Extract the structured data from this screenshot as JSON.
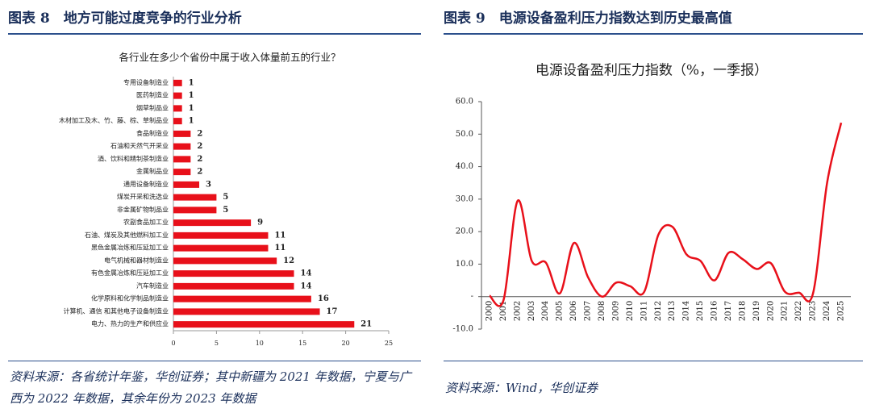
{
  "figures": [
    {
      "header": "图表 8　地方可能过度竞争的行业分析",
      "source": "资料来源：各省统计年鉴，华创证券；其中新疆为 2021 年数据，宁夏与广西为 2022 年数据，其余年份为 2023 年数据"
    },
    {
      "header": "图表 9　电源设备盈利压力指数达到历史最高值",
      "source": "资料来源：Wind，华创证券"
    }
  ],
  "chart_data": [
    {
      "type": "hbar",
      "title": "各行业在多少个省份中属于收入体量前五的行业？",
      "color": "#e8101a",
      "categories": [
        "专用设备制造业",
        "医药制造业",
        "烟草制品业",
        "木材加工及木、竹、藤、棕、草制品业",
        "食品制造业",
        "石油和天然气开采业",
        "酒、饮料和精制茶制造业",
        "金属制品业",
        "通用设备制造业",
        "煤炭开采和洗选业",
        "非金属矿物制品业",
        "农副食品加工业",
        "石油、煤炭及其他燃料加工业",
        "黑色金属冶炼和压延加工业",
        "电气机械和器材制造业",
        "有色金属冶炼和压延加工业",
        "汽车制造业",
        "化学原料和化学制品制造业",
        "计算机、通信 和其他电子设备制造业",
        "电力、热力的生产和供应业"
      ],
      "values": [
        1,
        1,
        1,
        1,
        2,
        2,
        2,
        2,
        3,
        5,
        5,
        9,
        11,
        11,
        12,
        14,
        14,
        16,
        17,
        21
      ],
      "xlim": [
        0,
        25
      ],
      "xticks": [
        0,
        5,
        10,
        15,
        20,
        25
      ]
    },
    {
      "type": "line",
      "title": "电源设备盈利压力指数（%，一季报）",
      "categories": [
        "2000",
        "2001",
        "2002",
        "2003",
        "2004",
        "2005",
        "2006",
        "2007",
        "2008",
        "2009",
        "2010",
        "2011",
        "2012",
        "2013",
        "2014",
        "2015",
        "2016",
        "2017",
        "2018",
        "2019",
        "2020",
        "2021",
        "2022",
        "2023",
        "2024",
        "2025"
      ],
      "series": [
        {
          "color": "#e8101a",
          "values": [
            0.3,
            -1,
            29.5,
            11,
            10.5,
            1,
            16.5,
            6,
            0,
            4.3,
            3.2,
            1.5,
            19,
            21.5,
            13,
            11,
            5,
            13.5,
            11.5,
            8.5,
            10.3,
            1.5,
            1.2,
            1,
            35,
            53.5
          ]
        }
      ],
      "ylim": [
        -10,
        60
      ],
      "yticks": [
        {
          "value": -10,
          "label": "-10.0"
        },
        {
          "value": 0,
          "label": "-"
        },
        {
          "value": 10,
          "label": "10.0"
        },
        {
          "value": 20,
          "label": "20.0"
        },
        {
          "value": 30,
          "label": "30.0"
        },
        {
          "value": 40,
          "label": "40.0"
        },
        {
          "value": 50,
          "label": "50.0"
        },
        {
          "value": 60,
          "label": "60.0"
        }
      ]
    }
  ]
}
